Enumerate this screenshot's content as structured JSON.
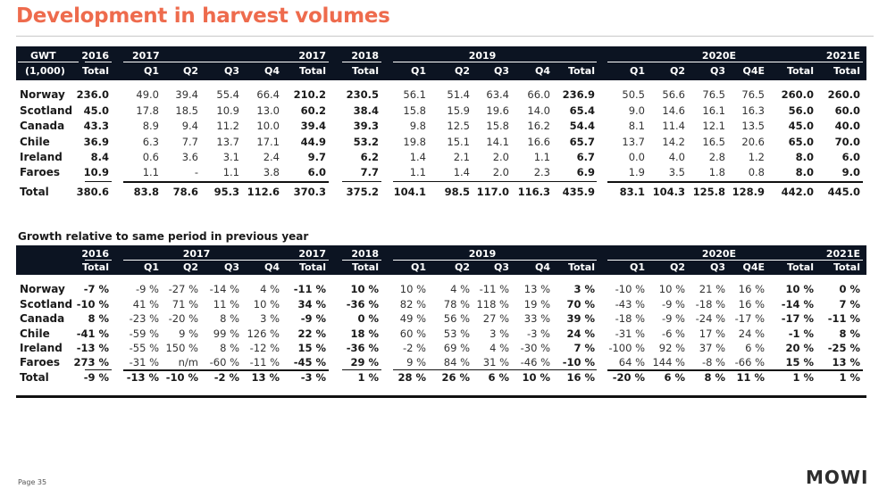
{
  "title": "Development in harvest volumes",
  "page_label": "Page 35",
  "logo_text": "MOWI",
  "colors": {
    "title": "#ee6b4d",
    "header_bg": "#0c1422"
  },
  "volumes": {
    "header_top": [
      "GWT",
      "2016",
      "2017",
      "2017",
      "2018",
      "2019",
      "2020E",
      "2021E"
    ],
    "header_sub": [
      "(1,000)",
      "Total",
      "Q1",
      "Q2",
      "Q3",
      "Q4",
      "Total",
      "Total",
      "Q1",
      "Q2",
      "Q3",
      "Q4",
      "Total",
      "Q1",
      "Q2",
      "Q3",
      "Q4E",
      "Total",
      "Total"
    ],
    "rows": [
      {
        "label": "Norway",
        "values": [
          "236.0",
          "49.0",
          "39.4",
          "55.4",
          "66.4",
          "210.2",
          "230.5",
          "56.1",
          "51.4",
          "63.4",
          "66.0",
          "236.9",
          "50.5",
          "56.6",
          "76.5",
          "76.5",
          "260.0",
          "260.0"
        ]
      },
      {
        "label": "Scotland",
        "values": [
          "45.0",
          "17.8",
          "18.5",
          "10.9",
          "13.0",
          "60.2",
          "38.4",
          "15.8",
          "15.9",
          "19.6",
          "14.0",
          "65.4",
          "9.0",
          "14.6",
          "16.1",
          "16.3",
          "56.0",
          "60.0"
        ]
      },
      {
        "label": "Canada",
        "values": [
          "43.3",
          "8.9",
          "9.4",
          "11.2",
          "10.0",
          "39.4",
          "39.3",
          "9.8",
          "12.5",
          "15.8",
          "16.2",
          "54.4",
          "8.1",
          "11.4",
          "12.1",
          "13.5",
          "45.0",
          "40.0"
        ]
      },
      {
        "label": "Chile",
        "values": [
          "36.9",
          "6.3",
          "7.7",
          "13.7",
          "17.1",
          "44.9",
          "53.2",
          "19.8",
          "15.1",
          "14.1",
          "16.6",
          "65.7",
          "13.7",
          "14.2",
          "16.5",
          "20.6",
          "65.0",
          "70.0"
        ]
      },
      {
        "label": "Ireland",
        "values": [
          "8.4",
          "0.6",
          "3.6",
          "3.1",
          "2.4",
          "9.7",
          "6.2",
          "1.4",
          "2.1",
          "2.0",
          "1.1",
          "6.7",
          "0.0",
          "4.0",
          "2.8",
          "1.2",
          "8.0",
          "6.0"
        ]
      },
      {
        "label": "Faroes",
        "values": [
          "10.9",
          "1.1",
          "-",
          "1.1",
          "3.8",
          "6.0",
          "7.7",
          "1.1",
          "1.4",
          "2.0",
          "2.3",
          "6.9",
          "1.9",
          "3.5",
          "1.8",
          "0.8",
          "8.0",
          "9.0"
        ]
      }
    ],
    "total": {
      "label": "Total",
      "values": [
        "380.6",
        "83.8",
        "78.6",
        "95.3",
        "112.6",
        "370.3",
        "375.2",
        "104.1",
        "98.5",
        "117.0",
        "116.3",
        "435.9",
        "83.1",
        "104.3",
        "125.8",
        "128.9",
        "442.0",
        "445.0"
      ]
    }
  },
  "growth": {
    "title": "Growth relative to same period in previous year",
    "header_top": [
      "2016",
      "2017",
      "2017",
      "2018",
      "2019",
      "2020E",
      "2021E"
    ],
    "header_sub": [
      "Total",
      "Q1",
      "Q2",
      "Q3",
      "Q4",
      "Total",
      "Total",
      "Q1",
      "Q2",
      "Q3",
      "Q4",
      "Total",
      "Q1",
      "Q2",
      "Q3",
      "Q4E",
      "Total",
      "Total"
    ],
    "rows": [
      {
        "label": "Norway",
        "values": [
          "-7 %",
          "-9 %",
          "-27 %",
          "-14 %",
          "4 %",
          "-11 %",
          "10 %",
          "10 %",
          "4 %",
          "-11 %",
          "13 %",
          "3 %",
          "-10 %",
          "10 %",
          "21 %",
          "16 %",
          "10 %",
          "0 %"
        ]
      },
      {
        "label": "Scotland",
        "values": [
          "-10 %",
          "41 %",
          "71 %",
          "11 %",
          "10 %",
          "34 %",
          "-36 %",
          "82 %",
          "78 %",
          "118 %",
          "19 %",
          "70 %",
          "-43 %",
          "-9 %",
          "-18 %",
          "16 %",
          "-14 %",
          "7 %"
        ]
      },
      {
        "label": "Canada",
        "values": [
          "8 %",
          "-23 %",
          "-20 %",
          "8 %",
          "3 %",
          "-9 %",
          "0 %",
          "49 %",
          "56 %",
          "27 %",
          "33 %",
          "39 %",
          "-18 %",
          "-9 %",
          "-24 %",
          "-17 %",
          "-17 %",
          "-11 %"
        ]
      },
      {
        "label": "Chile",
        "values": [
          "-41 %",
          "-59 %",
          "9 %",
          "99 %",
          "126 %",
          "22 %",
          "18 %",
          "60 %",
          "53 %",
          "3 %",
          "-3 %",
          "24 %",
          "-31 %",
          "-6 %",
          "17 %",
          "24 %",
          "-1 %",
          "8 %"
        ]
      },
      {
        "label": "Ireland",
        "values": [
          "-13 %",
          "-55 %",
          "150 %",
          "8 %",
          "-12 %",
          "15 %",
          "-36 %",
          "-2 %",
          "69 %",
          "4 %",
          "-30 %",
          "7 %",
          "-100 %",
          "92 %",
          "37 %",
          "6 %",
          "20 %",
          "-25 %"
        ]
      },
      {
        "label": "Faroes",
        "values": [
          "273 %",
          "-31 %",
          "n/m",
          "-60 %",
          "-11 %",
          "-45 %",
          "29 %",
          "9 %",
          "84 %",
          "31 %",
          "-46 %",
          "-10 %",
          "64 %",
          "144 %",
          "-8 %",
          "-66 %",
          "15 %",
          "13 %"
        ]
      }
    ],
    "total": {
      "label": "Total",
      "values": [
        "-9 %",
        "-13 %",
        "-10 %",
        "-2 %",
        "13 %",
        "-3 %",
        "1 %",
        "28 %",
        "26 %",
        "6 %",
        "10 %",
        "16 %",
        "-20 %",
        "6 %",
        "8 %",
        "11 %",
        "1 %",
        "1 %"
      ]
    }
  }
}
